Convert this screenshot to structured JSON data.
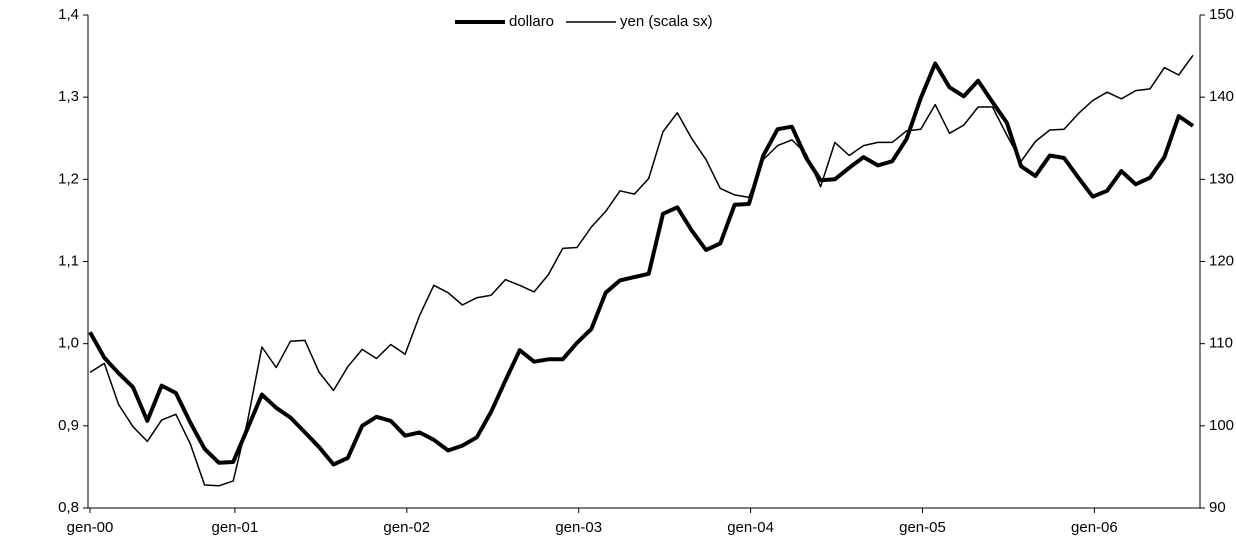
{
  "chart_data": {
    "type": "line",
    "categories": [
      "gen-00",
      null,
      null,
      null,
      null,
      null,
      null,
      null,
      null,
      null,
      null,
      null,
      "gen-01",
      null,
      null,
      null,
      null,
      null,
      null,
      null,
      null,
      null,
      null,
      null,
      "gen-02",
      null,
      null,
      null,
      null,
      null,
      null,
      null,
      null,
      null,
      null,
      null,
      "gen-03",
      null,
      null,
      null,
      null,
      null,
      null,
      null,
      null,
      null,
      null,
      null,
      "gen-04",
      null,
      null,
      null,
      null,
      null,
      null,
      null,
      null,
      null,
      null,
      null,
      "gen-05",
      null,
      null,
      null,
      null,
      null,
      null,
      null,
      null,
      null,
      null,
      null,
      "gen-06",
      null,
      null,
      null,
      null,
      null
    ],
    "series": [
      {
        "name": "dollaro",
        "color": "#000000",
        "width": 4,
        "values": [
          1.014,
          0.983,
          0.964,
          0.947,
          0.906,
          0.949,
          0.94,
          0.904,
          0.872,
          0.855,
          0.856,
          0.897,
          0.938,
          0.922,
          0.91,
          0.892,
          0.874,
          0.853,
          0.861,
          0.9,
          0.911,
          0.906,
          0.888,
          0.892,
          0.883,
          0.87,
          0.876,
          0.886,
          0.917,
          0.955,
          0.992,
          0.978,
          0.981,
          0.981,
          1.001,
          1.018,
          1.062,
          1.077,
          1.081,
          1.085,
          1.158,
          1.166,
          1.138,
          1.114,
          1.122,
          1.169,
          1.17,
          1.229,
          1.261,
          1.264,
          1.226,
          1.199,
          1.2,
          1.214,
          1.227,
          1.217,
          1.222,
          1.249,
          1.299,
          1.341,
          1.312,
          1.301,
          1.32,
          1.294,
          1.269,
          1.216,
          1.204,
          1.229,
          1.226,
          1.202,
          1.179,
          1.186,
          1.21,
          1.194,
          1.202,
          1.227,
          1.277,
          1.265
        ]
      },
      {
        "name": "yen (scala sx)",
        "color": "#000000",
        "width": 1.5,
        "axis": "y2",
        "values": [
          106.5,
          107.6,
          102.6,
          99.9,
          98.1,
          100.7,
          101.4,
          97.8,
          92.8,
          92.7,
          93.3,
          100.6,
          109.6,
          107.1,
          110.3,
          110.4,
          106.5,
          104.3,
          107.2,
          109.3,
          108.2,
          109.9,
          108.7,
          113.4,
          117.1,
          116.2,
          114.7,
          115.6,
          115.9,
          117.8,
          117.1,
          116.3,
          118.4,
          121.6,
          121.7,
          124.2,
          126.1,
          128.6,
          128.2,
          130.1,
          135.8,
          138.1,
          135.0,
          132.4,
          128.9,
          128.1,
          127.8,
          132.4,
          134.1,
          134.8,
          133.1,
          129.1,
          134.5,
          132.9,
          134.1,
          134.5,
          134.5,
          135.9,
          136.1,
          139.1,
          135.6,
          136.6,
          138.8,
          138.8,
          135.4,
          132.2,
          134.6,
          136.0,
          136.1,
          138.0,
          139.6,
          140.6,
          139.8,
          140.8,
          141.0,
          143.6,
          142.7,
          145.1
        ]
      }
    ],
    "ylim": [
      0.8,
      1.4
    ],
    "yticks": [
      {
        "value": 0.8,
        "label": "0,8"
      },
      {
        "value": 0.9,
        "label": "0,9"
      },
      {
        "value": 1.0,
        "label": "1,0"
      },
      {
        "value": 1.1,
        "label": "1,1"
      },
      {
        "value": 1.2,
        "label": "1,2"
      },
      {
        "value": 1.3,
        "label": "1,3"
      },
      {
        "value": 1.4,
        "label": "1,4"
      }
    ],
    "y2lim": [
      90,
      150
    ],
    "y2ticks": [
      90,
      100,
      110,
      120,
      130,
      140,
      150
    ],
    "legend": "top"
  }
}
